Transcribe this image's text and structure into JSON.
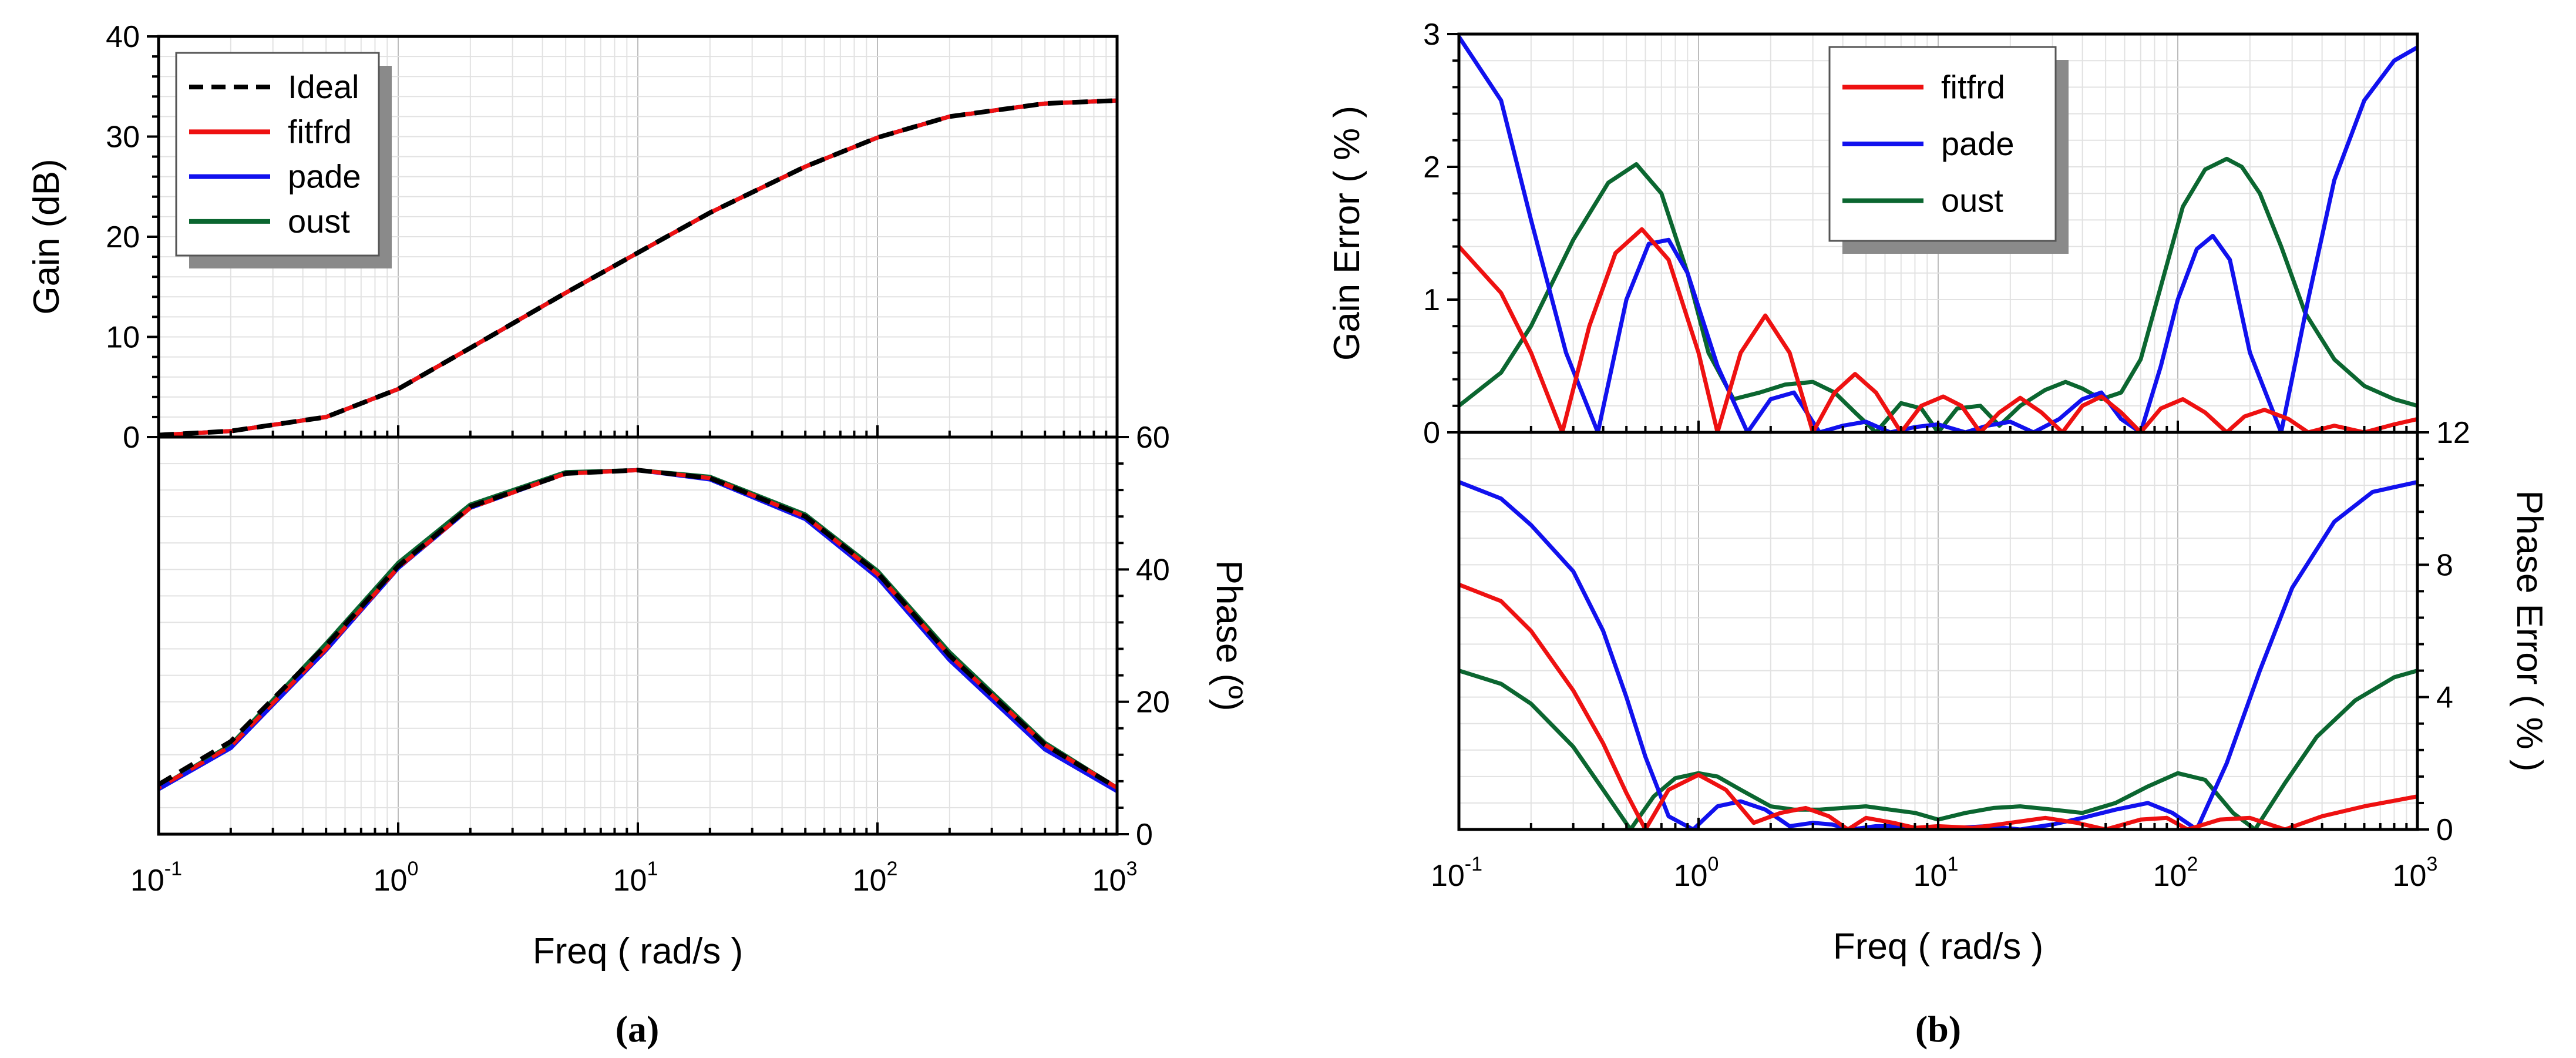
{
  "figure": {
    "panel_a_label": "(a)",
    "panel_b_label": "(b)"
  },
  "colors": {
    "ideal": "#000000",
    "fitfrd": "#ee1111",
    "pade": "#1111ee",
    "oust": "#0b6630"
  },
  "chart_data": [
    {
      "id": "a-gain",
      "type": "line",
      "title": "",
      "xlabel": "Freq ( rad/s )",
      "ylabel": "Gain (dB)",
      "xscale": "log",
      "xlim": [
        0.1,
        1000
      ],
      "ylim": [
        0,
        40
      ],
      "yticks": [
        0,
        10,
        20,
        30,
        40
      ],
      "grid": true,
      "legend": "top-left",
      "legend_entries": [
        "Ideal",
        "fitfrd",
        "pade",
        "oust"
      ],
      "x": [
        0.1,
        0.2,
        0.5,
        1,
        2,
        5,
        10,
        20,
        50,
        100,
        200,
        500,
        1000
      ],
      "series": [
        {
          "name": "Ideal",
          "style": "dashed",
          "values": [
            0.2,
            0.6,
            2.0,
            4.8,
            8.9,
            14.4,
            18.4,
            22.4,
            27.0,
            29.9,
            32.0,
            33.3,
            33.6
          ]
        },
        {
          "name": "fitfrd",
          "values": [
            0.2,
            0.6,
            2.0,
            4.8,
            8.9,
            14.4,
            18.4,
            22.4,
            27.0,
            29.9,
            32.0,
            33.3,
            33.6
          ]
        },
        {
          "name": "pade",
          "values": [
            0.2,
            0.6,
            2.0,
            4.8,
            8.9,
            14.4,
            18.4,
            22.4,
            27.0,
            29.9,
            32.0,
            33.3,
            33.6
          ]
        },
        {
          "name": "oust",
          "values": [
            0.2,
            0.6,
            2.0,
            4.8,
            8.9,
            14.4,
            18.4,
            22.4,
            27.0,
            29.9,
            32.0,
            33.3,
            33.6
          ]
        }
      ]
    },
    {
      "id": "a-phase",
      "type": "line",
      "title": "",
      "xlabel": "Freq ( rad/s )",
      "ylabel": "Phase (º)",
      "xscale": "log",
      "xlim": [
        0.1,
        1000
      ],
      "xticks": [
        "10-1",
        "100",
        "101",
        "102",
        "103"
      ],
      "ylim": [
        0,
        60
      ],
      "yticks": [
        0,
        20,
        40,
        60
      ],
      "yaxis_side": "right",
      "grid": true,
      "x": [
        0.1,
        0.2,
        0.5,
        1,
        2,
        5,
        10,
        20,
        50,
        100,
        200,
        500,
        1000
      ],
      "series": [
        {
          "name": "Ideal",
          "style": "dashed",
          "values": [
            7.5,
            14.0,
            28.5,
            40.5,
            49.5,
            54.5,
            55.0,
            53.8,
            48.0,
            39.5,
            27.0,
            13.5,
            7.0
          ]
        },
        {
          "name": "fitfrd",
          "values": [
            7.0,
            13.3,
            28.0,
            40.3,
            49.3,
            54.5,
            55.0,
            53.8,
            48.0,
            39.3,
            27.0,
            13.5,
            7.0
          ]
        },
        {
          "name": "pade",
          "values": [
            6.8,
            13.0,
            27.8,
            40.2,
            49.3,
            54.5,
            55.0,
            53.6,
            47.6,
            38.8,
            26.3,
            12.8,
            6.5
          ]
        },
        {
          "name": "oust",
          "values": [
            7.0,
            13.5,
            28.8,
            41.0,
            49.8,
            54.7,
            55.0,
            54.0,
            48.3,
            39.8,
            27.5,
            13.8,
            7.0
          ]
        }
      ]
    },
    {
      "id": "b-gain-error",
      "type": "line",
      "title": "",
      "xlabel": "Freq ( rad/s )",
      "ylabel": "Gain  Error  ( % )",
      "xscale": "log",
      "xlim": [
        0.1,
        1000
      ],
      "ylim": [
        0,
        3
      ],
      "yticks": [
        0,
        1,
        2,
        3
      ],
      "grid": true,
      "legend": "top-center",
      "legend_entries": [
        "fitfrd",
        "pade",
        "oust"
      ],
      "series": [
        {
          "name": "fitfrd",
          "x": [
            0.1,
            0.15,
            0.2,
            0.27,
            0.35,
            0.45,
            0.58,
            0.75,
            1.0,
            1.2,
            1.5,
            1.9,
            2.4,
            3.0,
            3.7,
            4.5,
            5.5,
            7.0,
            8.5,
            10.5,
            12.5,
            15,
            18,
            22,
            27,
            33,
            40,
            48,
            58,
            70,
            85,
            105,
            130,
            160,
            190,
            230,
            290,
            350,
            450,
            600,
            800,
            1000
          ],
          "values": [
            1.4,
            1.05,
            0.6,
            0.0,
            0.8,
            1.35,
            1.53,
            1.3,
            0.6,
            0.0,
            0.6,
            0.88,
            0.6,
            0.0,
            0.3,
            0.44,
            0.3,
            0.0,
            0.2,
            0.27,
            0.2,
            0.0,
            0.15,
            0.26,
            0.15,
            0.0,
            0.2,
            0.27,
            0.15,
            0.0,
            0.18,
            0.25,
            0.15,
            0.0,
            0.12,
            0.17,
            0.1,
            0.0,
            0.05,
            0.0,
            0.06,
            0.1
          ]
        },
        {
          "name": "pade",
          "x": [
            0.1,
            0.15,
            0.2,
            0.28,
            0.38,
            0.5,
            0.62,
            0.75,
            0.9,
            1.2,
            1.6,
            2.0,
            2.5,
            3.2,
            4.0,
            5.0,
            6.3,
            8.0,
            10,
            13,
            16,
            20,
            25,
            32,
            40,
            48,
            58,
            70,
            85,
            100,
            120,
            140,
            165,
            200,
            270,
            350,
            450,
            600,
            800,
            1000
          ],
          "values": [
            2.98,
            2.5,
            1.6,
            0.6,
            0.0,
            1.0,
            1.42,
            1.45,
            1.2,
            0.5,
            0.0,
            0.25,
            0.3,
            0.0,
            0.05,
            0.08,
            0.0,
            0.04,
            0.06,
            0.0,
            0.05,
            0.08,
            0.0,
            0.1,
            0.25,
            0.3,
            0.1,
            0.0,
            0.5,
            1.0,
            1.38,
            1.48,
            1.3,
            0.6,
            0.0,
            1.0,
            1.9,
            2.5,
            2.8,
            2.9
          ]
        },
        {
          "name": "oust",
          "x": [
            0.1,
            0.15,
            0.2,
            0.3,
            0.42,
            0.55,
            0.7,
            0.9,
            1.1,
            1.4,
            1.8,
            2.3,
            3.0,
            3.7,
            4.5,
            5.5,
            7.0,
            8.5,
            10,
            12,
            15,
            18,
            22,
            28,
            34,
            40,
            48,
            58,
            70,
            85,
            105,
            130,
            160,
            185,
            220,
            270,
            340,
            450,
            600,
            800,
            1000
          ],
          "values": [
            0.2,
            0.45,
            0.8,
            1.45,
            1.88,
            2.02,
            1.8,
            1.2,
            0.6,
            0.25,
            0.3,
            0.36,
            0.38,
            0.3,
            0.15,
            0.0,
            0.22,
            0.18,
            0.0,
            0.18,
            0.2,
            0.05,
            0.2,
            0.32,
            0.38,
            0.33,
            0.25,
            0.3,
            0.55,
            1.1,
            1.7,
            1.98,
            2.06,
            2.0,
            1.8,
            1.4,
            0.9,
            0.55,
            0.35,
            0.25,
            0.2
          ]
        }
      ]
    },
    {
      "id": "b-phase-error",
      "type": "line",
      "title": "",
      "xlabel": "Freq ( rad/s )",
      "ylabel": "Phase  Error  ( % )",
      "xscale": "log",
      "xlim": [
        0.1,
        1000
      ],
      "xticks": [
        "10-1",
        "100",
        "101",
        "102",
        "103"
      ],
      "ylim": [
        0,
        12
      ],
      "yticks": [
        0,
        4,
        8,
        12
      ],
      "yaxis_side": "right",
      "grid": true,
      "series": [
        {
          "name": "fitfrd",
          "x": [
            0.1,
            0.15,
            0.2,
            0.3,
            0.4,
            0.5,
            0.6,
            0.75,
            1.0,
            1.3,
            1.7,
            2.2,
            2.8,
            3.5,
            4.2,
            5.0,
            6.5,
            8.0,
            10,
            14,
            20,
            28,
            38,
            50,
            70,
            90,
            110,
            150,
            200,
            280,
            400,
            600,
            1000
          ],
          "values": [
            7.4,
            6.9,
            6.0,
            4.2,
            2.6,
            1.1,
            0.0,
            1.2,
            1.65,
            1.2,
            0.2,
            0.5,
            0.65,
            0.4,
            0.0,
            0.35,
            0.2,
            0.05,
            0.1,
            0.05,
            0.2,
            0.35,
            0.2,
            0.0,
            0.3,
            0.35,
            0.0,
            0.3,
            0.35,
            0.0,
            0.4,
            0.7,
            1.0
          ]
        },
        {
          "name": "pade",
          "x": [
            0.1,
            0.15,
            0.2,
            0.3,
            0.4,
            0.5,
            0.6,
            0.75,
            0.95,
            1.2,
            1.5,
            1.9,
            2.4,
            3.0,
            3.6,
            4.3,
            5.5,
            7.0,
            9.0,
            12,
            16,
            22,
            30,
            40,
            55,
            75,
            95,
            120,
            160,
            220,
            300,
            450,
            650,
            1000
          ],
          "values": [
            10.5,
            10.0,
            9.2,
            7.8,
            6.0,
            4.0,
            2.2,
            0.4,
            0.0,
            0.7,
            0.85,
            0.6,
            0.1,
            0.2,
            0.15,
            0.0,
            0.1,
            0.1,
            0.0,
            0.05,
            0.1,
            0.0,
            0.15,
            0.35,
            0.6,
            0.8,
            0.5,
            0.0,
            2.0,
            4.8,
            7.3,
            9.3,
            10.2,
            10.5
          ]
        },
        {
          "name": "oust",
          "x": [
            0.1,
            0.15,
            0.2,
            0.3,
            0.4,
            0.52,
            0.65,
            0.8,
            1.0,
            1.2,
            1.5,
            2.0,
            2.5,
            3.2,
            4.0,
            5.0,
            6.3,
            8.0,
            10,
            13,
            17,
            22,
            30,
            40,
            55,
            75,
            100,
            130,
            170,
            210,
            280,
            380,
            550,
            800,
            1000
          ],
          "values": [
            4.8,
            4.4,
            3.8,
            2.5,
            1.2,
            0.0,
            1.0,
            1.55,
            1.7,
            1.6,
            1.2,
            0.7,
            0.6,
            0.6,
            0.65,
            0.7,
            0.6,
            0.5,
            0.3,
            0.5,
            0.65,
            0.7,
            0.6,
            0.5,
            0.8,
            1.3,
            1.7,
            1.5,
            0.5,
            0.0,
            1.4,
            2.8,
            3.9,
            4.6,
            4.8
          ]
        }
      ]
    }
  ]
}
